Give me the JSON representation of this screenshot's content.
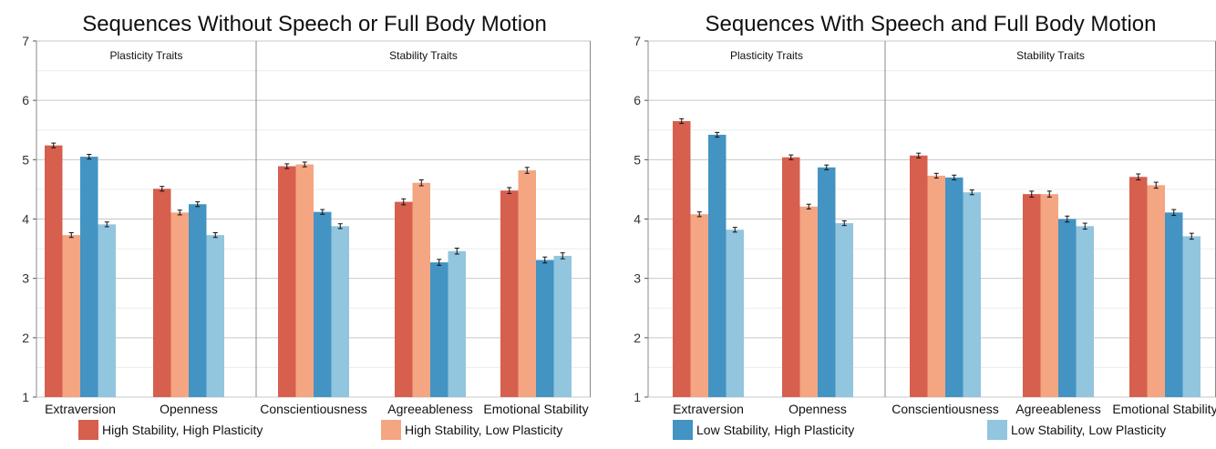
{
  "chart_data": [
    {
      "type": "bar",
      "title": "Sequences Without Speech or Full Body Motion",
      "ylim": [
        1,
        7
      ],
      "yticks": [
        1,
        2,
        3,
        4,
        5,
        6,
        7
      ],
      "groups": [
        "Plasticity Traits",
        "Stability Traits"
      ],
      "categories": [
        "Extraversion",
        "Openness",
        "Conscientiousness",
        "Agreeableness",
        "Emotional Stability"
      ],
      "series": [
        {
          "name": "High Stability, High Plasticity",
          "values": [
            5.24,
            4.51,
            4.89,
            4.29,
            4.48
          ]
        },
        {
          "name": "High Stability, Low Plasticity",
          "values": [
            3.73,
            4.11,
            4.92,
            4.61,
            4.82
          ]
        },
        {
          "name": "Low Stability, High Plasticity",
          "values": [
            5.05,
            4.25,
            4.12,
            3.27,
            3.31
          ]
        },
        {
          "name": "Low Stability, Low Plasticity",
          "values": [
            3.91,
            3.73,
            3.88,
            3.46,
            3.38
          ]
        }
      ]
    },
    {
      "type": "bar",
      "title": "Sequences With Speech and Full Body Motion",
      "ylim": [
        1,
        7
      ],
      "yticks": [
        1,
        2,
        3,
        4,
        5,
        6,
        7
      ],
      "groups": [
        "Plasticity Traits",
        "Stability Traits"
      ],
      "categories": [
        "Extraversion",
        "Openness",
        "Conscientiousness",
        "Agreeableness",
        "Emotional Stability"
      ],
      "series": [
        {
          "name": "High Stability, High Plasticity",
          "values": [
            5.65,
            5.04,
            5.07,
            4.42,
            4.71
          ]
        },
        {
          "name": "High Stability, Low Plasticity",
          "values": [
            4.08,
            4.21,
            4.73,
            4.42,
            4.57
          ]
        },
        {
          "name": "Low Stability, High Plasticity",
          "values": [
            5.42,
            4.87,
            4.7,
            4.0,
            4.11
          ]
        },
        {
          "name": "Low Stability, Low Plasticity",
          "values": [
            3.82,
            3.93,
            4.45,
            3.88,
            3.71
          ]
        }
      ]
    }
  ],
  "legend": [
    {
      "label": "High Stability, High Plasticity",
      "color": "#d65f4e"
    },
    {
      "label": "High Stability, Low Plasticity",
      "color": "#f4a582"
    },
    {
      "label": "Low Stability, High Plasticity",
      "color": "#4393c3"
    },
    {
      "label": "Low Stability, Low Plasticity",
      "color": "#92c5de"
    }
  ]
}
